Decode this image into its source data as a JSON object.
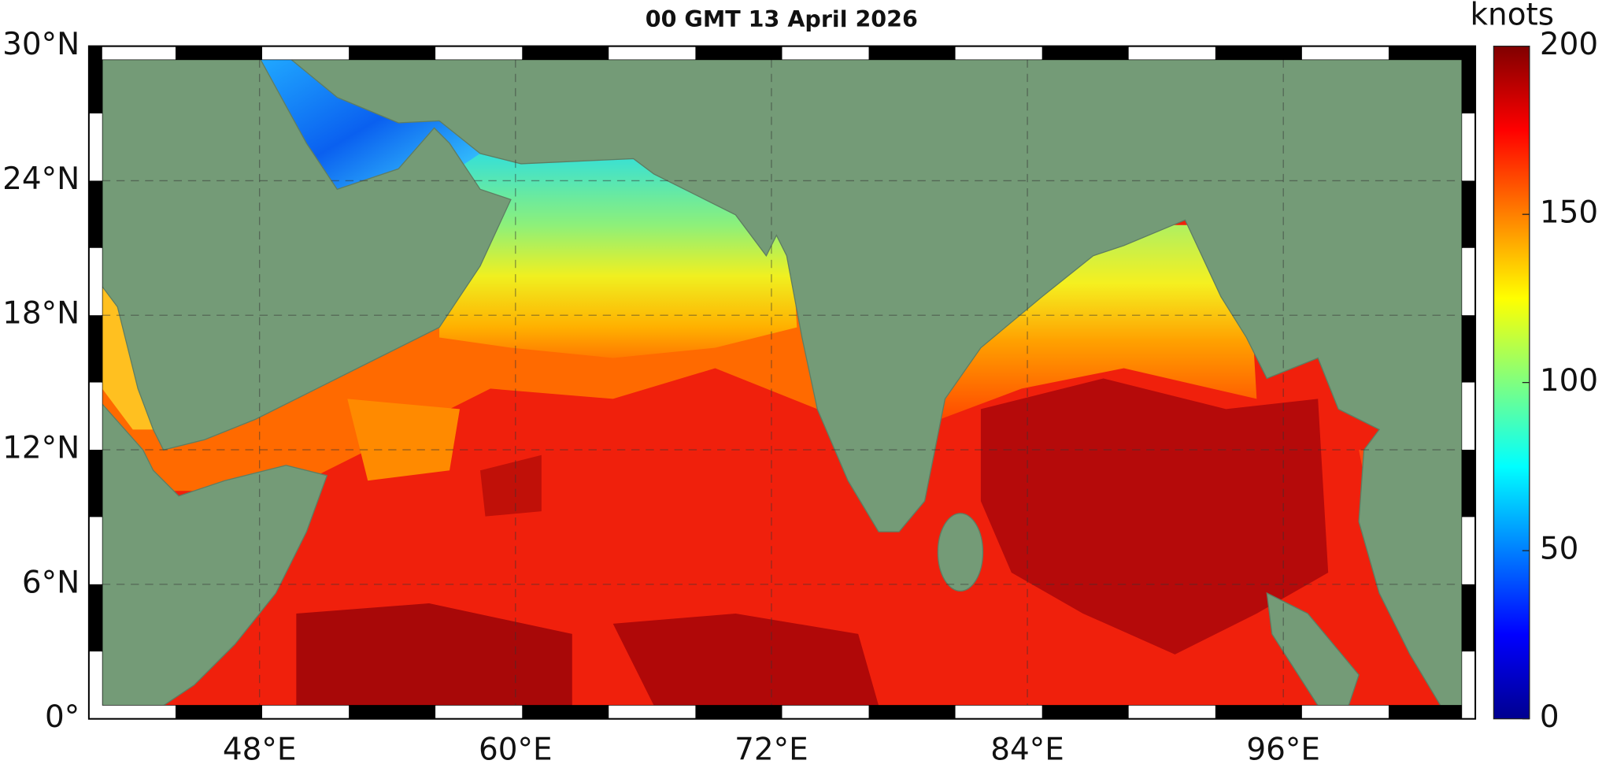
{
  "title": "00 GMT 13 April 2026",
  "map": {
    "xlim": [
      40,
      105
    ],
    "ylim": [
      0,
      30
    ],
    "grid": true,
    "xticks": [
      {
        "value": 48,
        "label": "48°E"
      },
      {
        "value": 60,
        "label": "60°E"
      },
      {
        "value": 72,
        "label": "72°E"
      },
      {
        "value": 84,
        "label": "84°E"
      },
      {
        "value": 96,
        "label": "96°E"
      }
    ],
    "yticks": [
      {
        "value": 0,
        "label": "0°"
      },
      {
        "value": 6,
        "label": "6°N"
      },
      {
        "value": 12,
        "label": "12°N"
      },
      {
        "value": 18,
        "label": "18°N"
      },
      {
        "value": 24,
        "label": "24°N"
      },
      {
        "value": 30,
        "label": "30°N"
      }
    ]
  },
  "colorbar": {
    "label": "knots",
    "lim": [
      0,
      200
    ],
    "ticks": [
      0,
      50,
      100,
      150,
      200
    ]
  }
}
